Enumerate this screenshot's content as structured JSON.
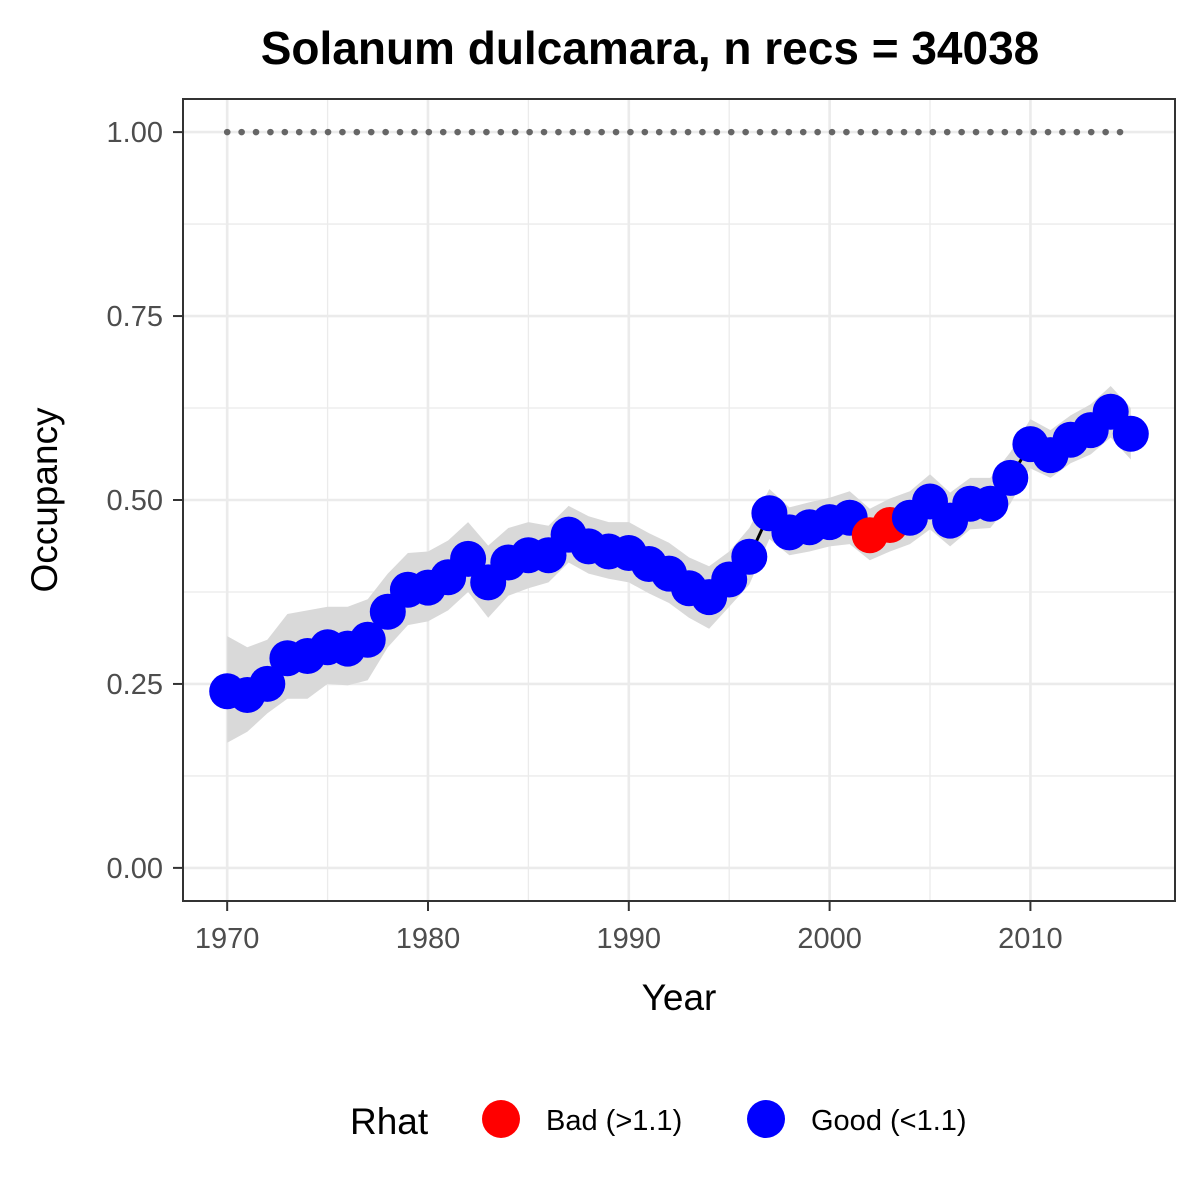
{
  "chart_data": {
    "type": "line",
    "title": "Solanum dulcamara, n recs = 34038",
    "xlabel": "Year",
    "ylabel": "Occupancy",
    "xlim": [
      1967.8,
      2017.2
    ],
    "ylim": [
      -0.045,
      1.045
    ],
    "x_ticks": [
      1970,
      1980,
      1990,
      2000,
      2010
    ],
    "x_tick_labels": [
      "1970",
      "1980",
      "1990",
      "2000",
      "2010"
    ],
    "y_ticks": [
      0,
      0.25,
      0.5,
      0.75,
      1.0
    ],
    "y_tick_labels": [
      "0.00",
      "0.25",
      "0.50",
      "0.75",
      "1.00"
    ],
    "grid": true,
    "reference_line": {
      "y": 1.0,
      "style": "dotted",
      "color": "#666666"
    },
    "years": [
      1970,
      1971,
      1972,
      1973,
      1974,
      1975,
      1976,
      1977,
      1978,
      1979,
      1980,
      1981,
      1982,
      1983,
      1984,
      1985,
      1986,
      1987,
      1988,
      1989,
      1990,
      1991,
      1992,
      1993,
      1994,
      1995,
      1996,
      1997,
      1998,
      1999,
      2000,
      2001,
      2002,
      2003,
      2004,
      2005,
      2006,
      2007,
      2008,
      2009,
      2010,
      2011,
      2012,
      2013,
      2014,
      2015
    ],
    "occupancy": [
      0.24,
      0.235,
      0.25,
      0.285,
      0.288,
      0.3,
      0.298,
      0.31,
      0.348,
      0.378,
      0.381,
      0.395,
      0.42,
      0.388,
      0.415,
      0.425,
      0.425,
      0.453,
      0.437,
      0.43,
      0.428,
      0.413,
      0.4,
      0.38,
      0.368,
      0.392,
      0.423,
      0.482,
      0.456,
      0.463,
      0.47,
      0.476,
      0.452,
      0.466,
      0.476,
      0.498,
      0.472,
      0.495,
      0.495,
      0.53,
      0.576,
      0.561,
      0.582,
      0.595,
      0.62,
      0.59
    ],
    "lower": [
      0.17,
      0.185,
      0.21,
      0.23,
      0.23,
      0.25,
      0.248,
      0.255,
      0.3,
      0.33,
      0.335,
      0.35,
      0.375,
      0.34,
      0.37,
      0.38,
      0.388,
      0.415,
      0.4,
      0.393,
      0.388,
      0.373,
      0.36,
      0.34,
      0.325,
      0.355,
      0.385,
      0.447,
      0.425,
      0.43,
      0.437,
      0.44,
      0.418,
      0.43,
      0.44,
      0.46,
      0.437,
      0.46,
      0.462,
      0.495,
      0.543,
      0.53,
      0.55,
      0.562,
      0.585,
      0.555
    ],
    "upper": [
      0.315,
      0.3,
      0.31,
      0.345,
      0.35,
      0.355,
      0.355,
      0.365,
      0.4,
      0.428,
      0.43,
      0.445,
      0.47,
      0.438,
      0.462,
      0.47,
      0.465,
      0.492,
      0.478,
      0.47,
      0.47,
      0.455,
      0.442,
      0.422,
      0.41,
      0.43,
      0.462,
      0.515,
      0.49,
      0.497,
      0.503,
      0.512,
      0.488,
      0.502,
      0.512,
      0.535,
      0.51,
      0.53,
      0.53,
      0.565,
      0.61,
      0.595,
      0.615,
      0.63,
      0.655,
      0.625
    ],
    "rhat": [
      "Good",
      "Good",
      "Good",
      "Good",
      "Good",
      "Good",
      "Good",
      "Good",
      "Good",
      "Good",
      "Good",
      "Good",
      "Good",
      "Good",
      "Good",
      "Good",
      "Good",
      "Good",
      "Good",
      "Good",
      "Good",
      "Good",
      "Good",
      "Good",
      "Good",
      "Good",
      "Good",
      "Good",
      "Good",
      "Good",
      "Good",
      "Good",
      "Bad",
      "Bad",
      "Good",
      "Good",
      "Good",
      "Good",
      "Good",
      "Good",
      "Good",
      "Good",
      "Good",
      "Good",
      "Good",
      "Good"
    ],
    "legend": {
      "title": "Rhat",
      "position": "bottom",
      "entries": [
        {
          "key": "Bad",
          "label": "Bad (>1.1)",
          "color": "#ff0000"
        },
        {
          "key": "Good",
          "label": "Good (<1.1)",
          "color": "#0000ff"
        }
      ]
    },
    "colors": {
      "ribbon": "#d9d9d9",
      "line": "#000000",
      "grid": "#ebebeb",
      "panel_border": "#333333",
      "good": "#0000ff",
      "bad": "#ff0000"
    }
  }
}
